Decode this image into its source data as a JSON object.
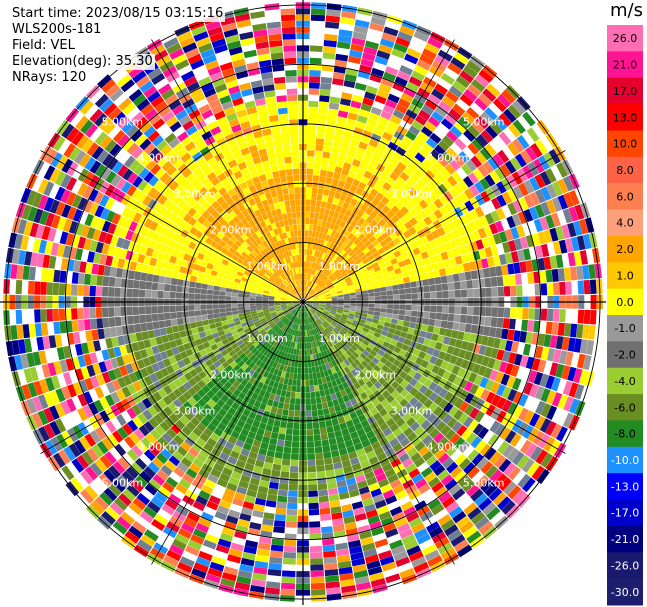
{
  "header": {
    "start_time": "Start time: 2023/08/15 03:15:16",
    "instrument": "WLS200s-181",
    "field": "Field: VEL",
    "elevation": "Elevation(deg): 35.30",
    "nrays": "NRays: 120"
  },
  "chart_data": {
    "type": "heatmap",
    "subtype": "polar-ppi",
    "range_rings_km": [
      1.0,
      2.0,
      3.0,
      4.0,
      5.0
    ],
    "ring_labels": [
      "1.00km",
      "2.00km",
      "3.00km",
      "4.00km",
      "5.00km"
    ],
    "max_range_km": 5.1,
    "colorbar": {
      "unit": "m/s",
      "ticks": [
        "26.0",
        "21.0",
        "17.0",
        "13.0",
        "10.0",
        "8.0",
        "6.0",
        "4.0",
        "2.0",
        "1.0",
        "0.0",
        "-1.0",
        "-2.0",
        "-4.0",
        "-6.0",
        "-8.0",
        "-10.0",
        "-13.0",
        "-17.0",
        "-21.0",
        "-26.0",
        "-30.0"
      ],
      "colors": [
        "#ff6eb4",
        "#ff1493",
        "#e6002e",
        "#ff0000",
        "#ff4500",
        "#ff6347",
        "#ff7f50",
        "#ffa07a",
        "#ffa500",
        "#ffc800",
        "#ffff00",
        "#9a9a9a",
        "#707070",
        "#9acd32",
        "#6b8e23",
        "#228b22",
        "#1e90ff",
        "#0000ff",
        "#0000cd",
        "#000080",
        "#191970",
        "#1e1e6e"
      ]
    },
    "regions": [
      {
        "sector": "north",
        "velocity": "2.0 to 6.0",
        "color": "orange/yellow"
      },
      {
        "sector": "east-west band",
        "velocity": "-1.0 to 0.0",
        "color": "gray"
      },
      {
        "sector": "south",
        "velocity": "-2.0 to -6.0",
        "color": "green"
      },
      {
        "sector": "outer rings",
        "velocity": "noise",
        "color": "mixed"
      }
    ]
  }
}
